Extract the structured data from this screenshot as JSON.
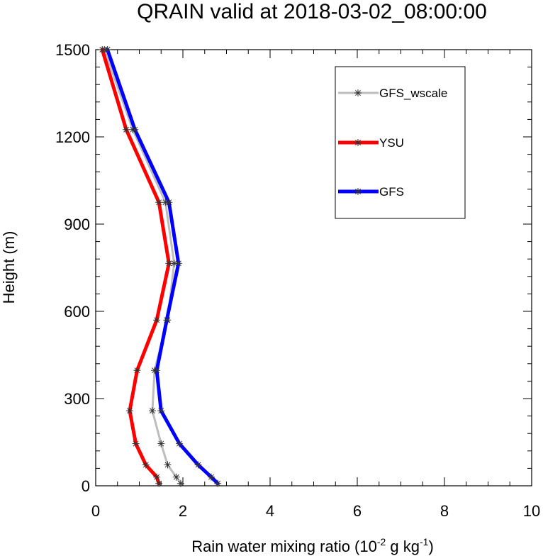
{
  "chart_data": {
    "type": "line",
    "title": "QRAIN valid at 2018-03-02_08:00:00",
    "xlabel": "Rain water mixing ratio (10",
    "xlabel_exp1": "-2",
    "xlabel_mid": " g kg",
    "xlabel_exp2": "-1",
    "xlabel_end": ")",
    "ylabel": "Height (m)",
    "xlim": [
      0,
      10
    ],
    "ylim": [
      0,
      1500
    ],
    "xticks": [
      "0",
      "2",
      "4",
      "6",
      "8",
      "10"
    ],
    "yticks": [
      "0",
      "300",
      "600",
      "900",
      "1200",
      "1500"
    ],
    "legend_position": "top-right",
    "series": [
      {
        "name": "GFS_wscale",
        "color": "#bdbdbd",
        "x": [
          1.95,
          1.85,
          1.65,
          1.5,
          1.3,
          1.35,
          1.65,
          1.8,
          1.6,
          0.85,
          0.2
        ],
        "y": [
          8,
          30,
          72,
          145,
          258,
          397,
          570,
          765,
          975,
          1225,
          1500
        ]
      },
      {
        "name": "YSU",
        "color": "#ff0000",
        "x": [
          1.45,
          1.4,
          1.15,
          0.92,
          0.78,
          0.95,
          1.4,
          1.68,
          1.45,
          0.7,
          0.15
        ],
        "y": [
          8,
          30,
          72,
          145,
          258,
          397,
          570,
          765,
          975,
          1225,
          1500
        ]
      },
      {
        "name": "GFS",
        "color": "#0000ff",
        "x": [
          2.8,
          2.65,
          2.35,
          1.92,
          1.5,
          1.4,
          1.63,
          1.9,
          1.68,
          0.9,
          0.27
        ],
        "y": [
          8,
          30,
          72,
          145,
          258,
          397,
          570,
          765,
          975,
          1225,
          1500
        ]
      }
    ]
  }
}
